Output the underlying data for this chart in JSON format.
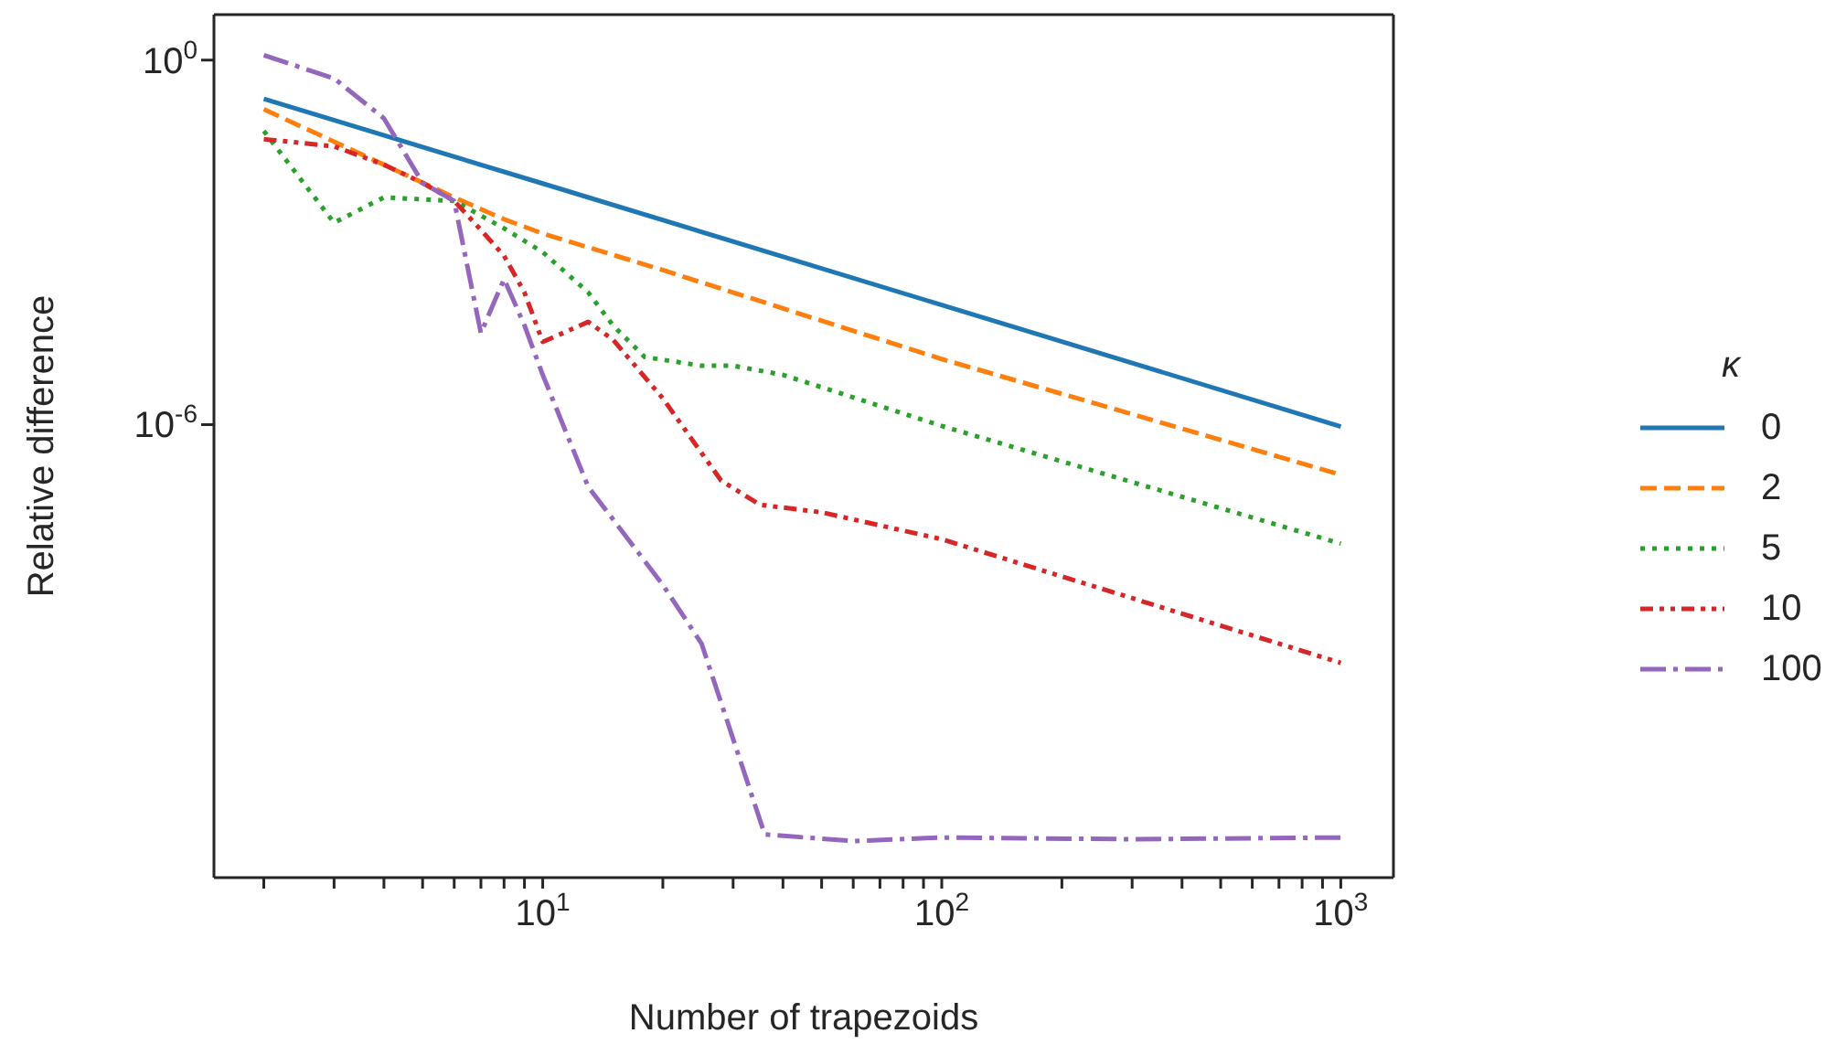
{
  "chart_data": {
    "type": "line",
    "xlabel": "Number of trapezoids",
    "ylabel": "Relative difference",
    "legend_title": "κ",
    "legend": "right",
    "log": "xy",
    "marker": "none",
    "xlim": [
      1.5,
      1355
    ],
    "ylim": [
      3.5e-14,
      5.6
    ],
    "xticks": [
      {
        "value": 2,
        "label": null
      },
      {
        "value": 3,
        "label": null
      },
      {
        "value": 4,
        "label": null
      },
      {
        "value": 5,
        "label": null
      },
      {
        "value": 6,
        "label": null
      },
      {
        "value": 7,
        "label": null
      },
      {
        "value": 8,
        "label": null
      },
      {
        "value": 9,
        "label": null
      },
      {
        "value": 10,
        "label": "10$^{1}$"
      },
      {
        "value": 20,
        "label": null
      },
      {
        "value": 30,
        "label": null
      },
      {
        "value": 40,
        "label": null
      },
      {
        "value": 50,
        "label": null
      },
      {
        "value": 60,
        "label": null
      },
      {
        "value": 70,
        "label": null
      },
      {
        "value": 80,
        "label": null
      },
      {
        "value": 90,
        "label": null
      },
      {
        "value": 100,
        "label": "10$^{2}$"
      },
      {
        "value": 200,
        "label": null
      },
      {
        "value": 300,
        "label": null
      },
      {
        "value": 400,
        "label": null
      },
      {
        "value": 500,
        "label": null
      },
      {
        "value": 600,
        "label": null
      },
      {
        "value": 700,
        "label": null
      },
      {
        "value": 800,
        "label": null
      },
      {
        "value": 900,
        "label": null
      },
      {
        "value": 1000,
        "label": "10$^{3}$"
      }
    ],
    "yticks": [
      {
        "value": 1e-06,
        "label": "10$^{-6}$"
      },
      {
        "value": 1,
        "label": "10$^{0}$"
      }
    ],
    "series": [
      {
        "name": "0",
        "color": "#1f77b4",
        "line_style": "solid",
        "x": [
          2,
          10,
          100,
          1000
        ],
        "values": [
          0.23,
          0.0093,
          9.3e-05,
          9.3e-07
        ]
      },
      {
        "name": "2",
        "color": "#ff7f0e",
        "line_style": "dashed",
        "x": [
          2,
          4,
          6,
          8,
          10,
          20,
          100,
          1000
        ],
        "values": [
          0.155,
          0.019,
          0.0055,
          0.0024,
          0.0014,
          0.00035,
          1.2e-05,
          1.5e-07
        ]
      },
      {
        "name": "5",
        "color": "#2ca02c",
        "line_style": "dotted",
        "x": [
          2,
          3,
          4,
          5,
          6,
          8,
          10,
          13,
          15,
          18,
          25,
          30,
          40,
          100,
          1000
        ],
        "values": [
          0.068,
          0.0021,
          0.0055,
          0.0051,
          0.0048,
          0.0017,
          0.00069,
          0.00015,
          4.3e-05,
          1.3e-05,
          9.3e-06,
          9.3e-06,
          6.6e-06,
          9.5e-07,
          1.1e-08
        ]
      },
      {
        "name": "10",
        "color": "#d62728",
        "line_style": "dashdotdot",
        "x": [
          2,
          3,
          4,
          5,
          6,
          7,
          8,
          9,
          10,
          13,
          15,
          20,
          28,
          35,
          50,
          100,
          1000
        ],
        "values": [
          0.05,
          0.038,
          0.019,
          0.0095,
          0.0048,
          0.0016,
          0.0006,
          0.00015,
          2.3e-05,
          4.9e-05,
          2.5e-05,
          2.7e-06,
          1.2e-07,
          4.8e-08,
          3.6e-08,
          1.3e-08,
          1.2e-10
        ]
      },
      {
        "name": "100",
        "color": "#9467bd",
        "line_style": "dashdot",
        "x": [
          2,
          3,
          4,
          5,
          6,
          7,
          8,
          9,
          10,
          13,
          20,
          25,
          36,
          60,
          100,
          300,
          1000
        ],
        "values": [
          1.2,
          0.5,
          0.11,
          0.0095,
          0.0048,
          3.2e-05,
          0.00025,
          4.3e-05,
          6.6e-06,
          9.5e-08,
          2.3e-09,
          2.5e-10,
          1.8e-13,
          1.4e-13,
          1.6e-13,
          1.5e-13,
          1.6e-13
        ]
      }
    ]
  }
}
